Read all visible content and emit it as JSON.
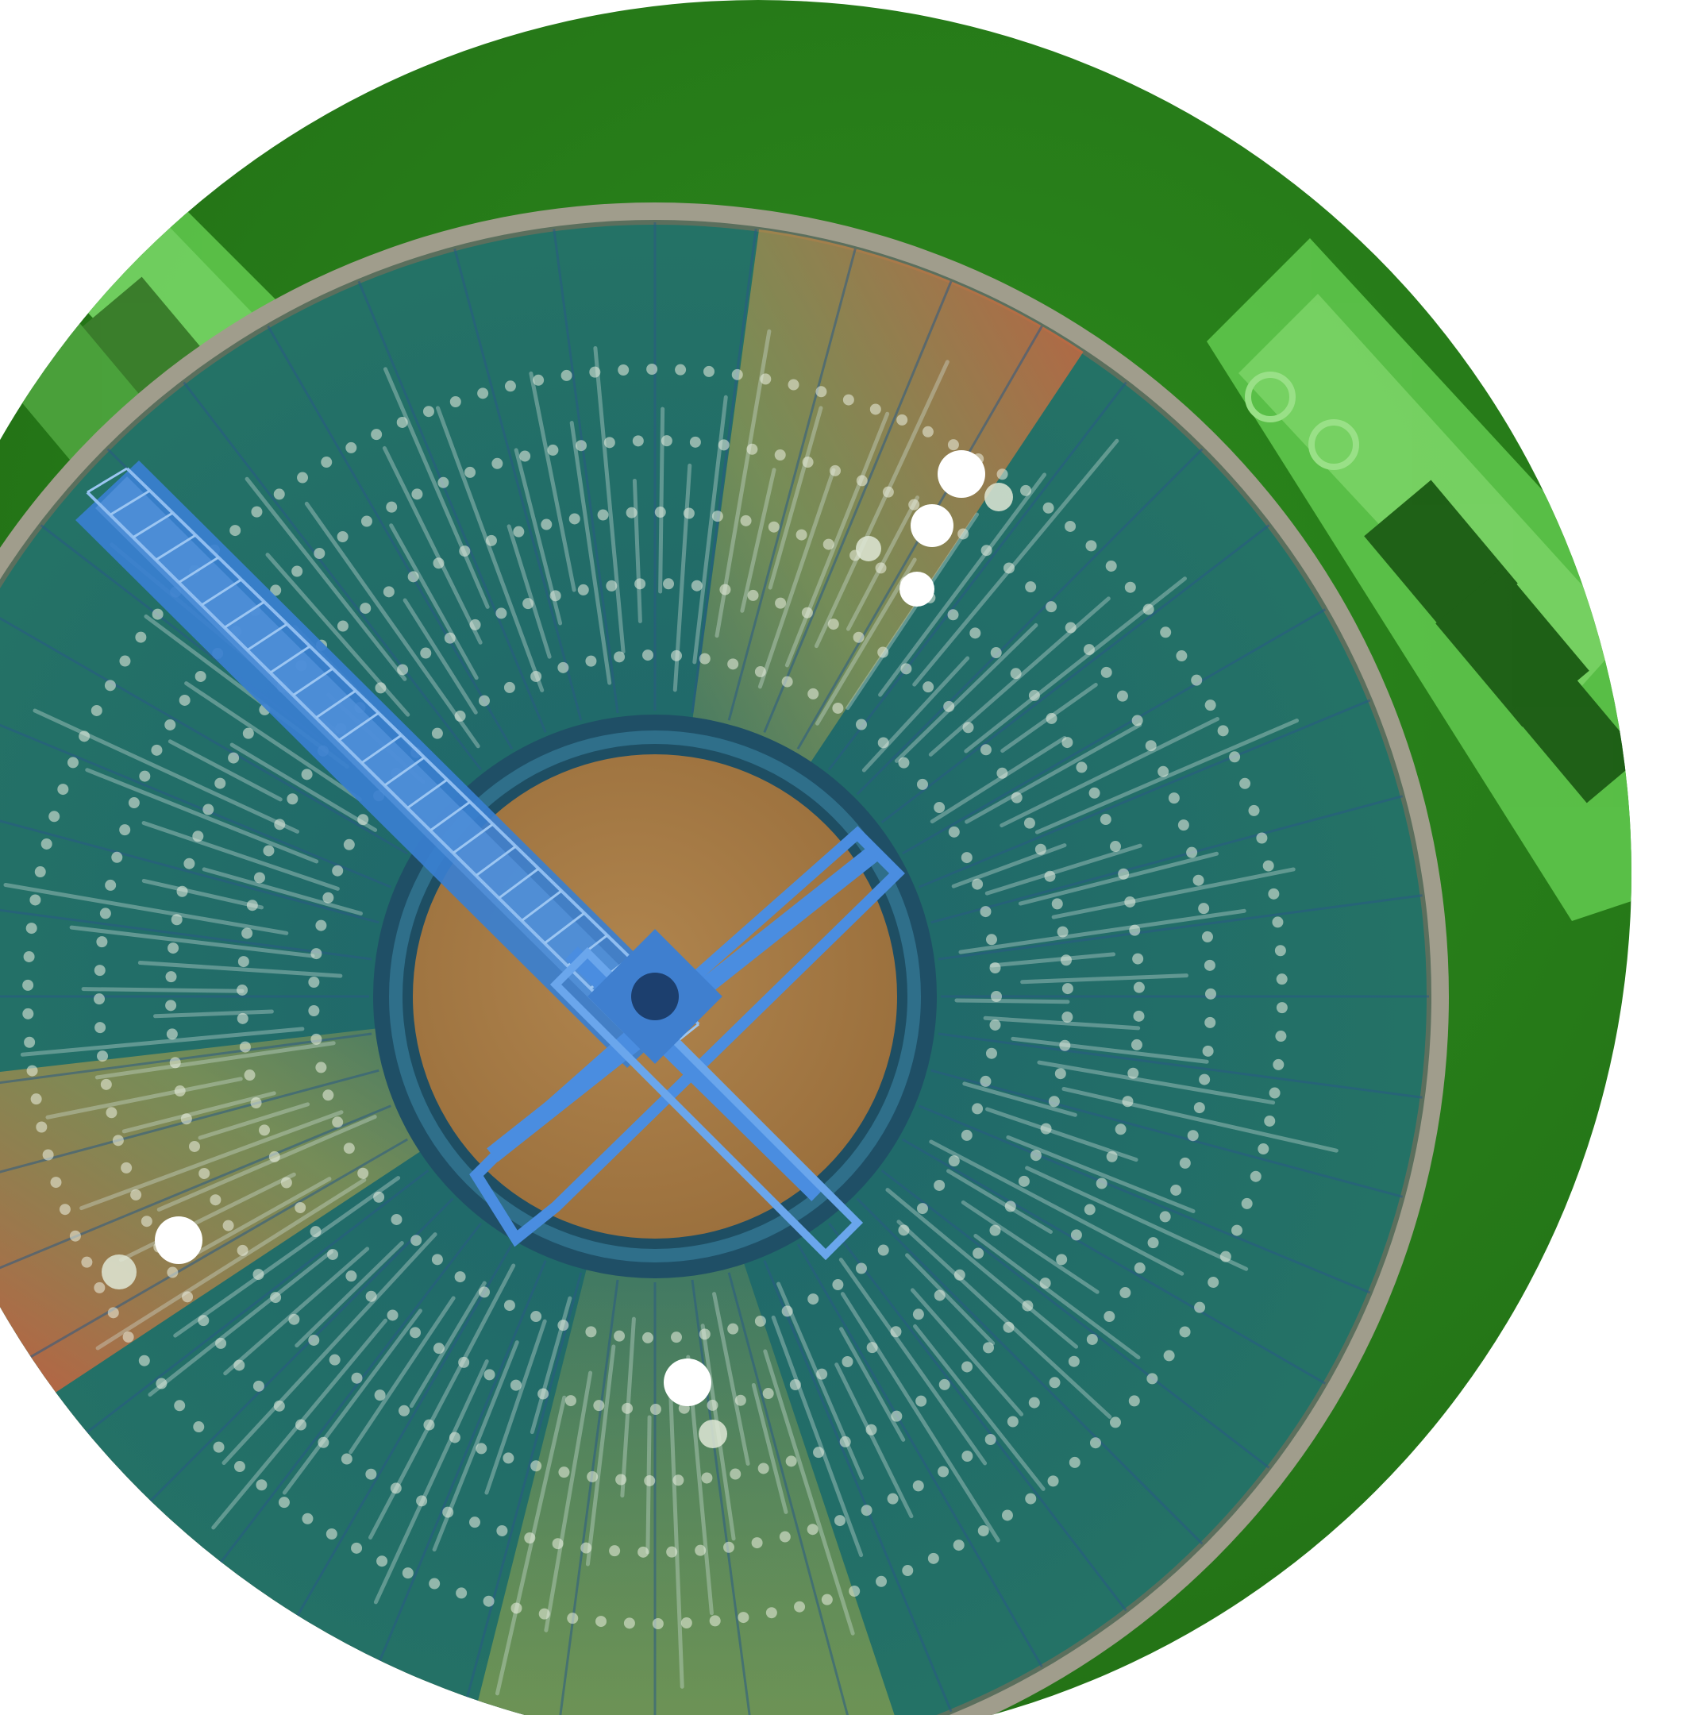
{
  "image": {
    "subject": "aerial-view-wastewater-clarifier-tank",
    "colors": {
      "background": "#ffffff",
      "grass": "#2f8a1f",
      "grass_dark": "#1f6a12",
      "grass_light": "#6bd25a",
      "rim": "#9a9a8a",
      "water": "#23716a",
      "water_edge": "#1c5f5c",
      "center_well": "#a87a45",
      "center_ring": "#1f4f66",
      "bridge": "#3a7fd0",
      "bridge_light": "#6fa6e6",
      "hot": "#d9583a",
      "warm": "#b9a64a",
      "dots": "#f2f2e6"
    }
  }
}
